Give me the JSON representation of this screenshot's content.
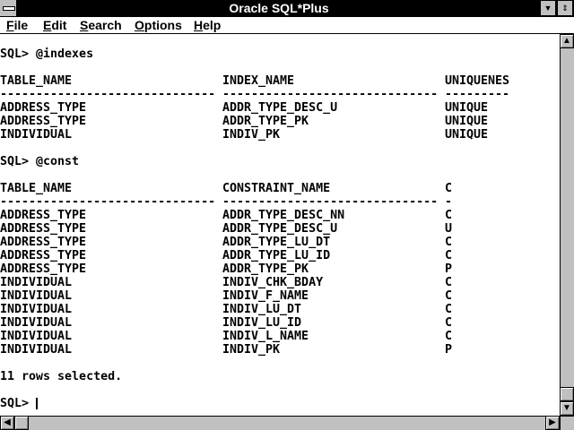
{
  "window": {
    "title": "Oracle SQL*Plus"
  },
  "menu": [
    {
      "accel": "F",
      "rest": "ile"
    },
    {
      "accel": "E",
      "rest": "dit"
    },
    {
      "accel": "S",
      "rest": "earch"
    },
    {
      "accel": "O",
      "rest": "ptions"
    },
    {
      "accel": "H",
      "rest": "elp"
    }
  ],
  "console": {
    "lines": [
      [
        ""
      ],
      [
        "SQL> @indexes"
      ],
      [
        ""
      ],
      [
        "TABLE_NAME",
        "INDEX_NAME",
        "UNIQUENES"
      ],
      [
        "------------------------------",
        "------------------------------",
        "---------"
      ],
      [
        "ADDRESS_TYPE",
        "ADDR_TYPE_DESC_U",
        "UNIQUE"
      ],
      [
        "ADDRESS_TYPE",
        "ADDR_TYPE_PK",
        "UNIQUE"
      ],
      [
        "INDIVIDUAL",
        "INDIV_PK",
        "UNIQUE"
      ],
      [
        ""
      ],
      [
        "SQL> @const"
      ],
      [
        ""
      ],
      [
        "TABLE_NAME",
        "CONSTRAINT_NAME",
        "C"
      ],
      [
        "------------------------------",
        "------------------------------",
        "-"
      ],
      [
        "ADDRESS_TYPE",
        "ADDR_TYPE_DESC_NN",
        "C"
      ],
      [
        "ADDRESS_TYPE",
        "ADDR_TYPE_DESC_U",
        "U"
      ],
      [
        "ADDRESS_TYPE",
        "ADDR_TYPE_LU_DT",
        "C"
      ],
      [
        "ADDRESS_TYPE",
        "ADDR_TYPE_LU_ID",
        "C"
      ],
      [
        "ADDRESS_TYPE",
        "ADDR_TYPE_PK",
        "P"
      ],
      [
        "INDIVIDUAL",
        "INDIV_CHK_BDAY",
        "C"
      ],
      [
        "INDIVIDUAL",
        "INDIV_F_NAME",
        "C"
      ],
      [
        "INDIVIDUAL",
        "INDIV_LU_DT",
        "C"
      ],
      [
        "INDIVIDUAL",
        "INDIV_LU_ID",
        "C"
      ],
      [
        "INDIVIDUAL",
        "INDIV_L_NAME",
        "C"
      ],
      [
        "INDIVIDUAL",
        "INDIV_PK",
        "P"
      ],
      [
        ""
      ],
      [
        "11 rows selected."
      ],
      [
        ""
      ]
    ],
    "prompt": "SQL> "
  },
  "scroll": {
    "vertical_position": 0.95,
    "horizontal_position": 0.0
  }
}
